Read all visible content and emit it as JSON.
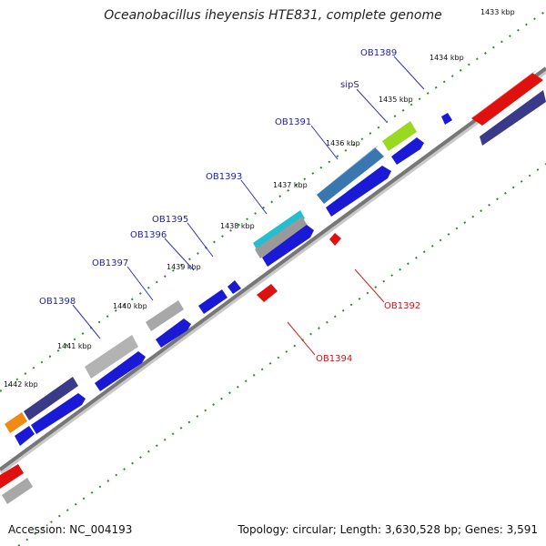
{
  "title": "Oceanobacillus iheyensis HTE831, complete genome",
  "footer": {
    "accession": "Accession: NC_004193",
    "summary": "Topology: circular; Length: 3,630,528 bp; Genes: 3,591"
  },
  "ticks": [
    "1433 kbp",
    "1434 kbp",
    "1435 kbp",
    "1436 kbp",
    "1437 kbp",
    "1438 kbp",
    "1439 kbp",
    "1440 kbp",
    "1441 kbp",
    "1442 kbp"
  ],
  "gene_labels_forward": [
    "OB1389",
    "sipS",
    "OB1391",
    "OB1393",
    "OB1395",
    "OB1396",
    "OB1397",
    "OB1398"
  ],
  "gene_labels_reverse": [
    "OB1392",
    "OB1394"
  ],
  "colors": {
    "forward_gene": "#1a1ad6",
    "reverse_gene": "#e0100f",
    "backbone": "#7a7a7a",
    "tick": "#2e8b2e",
    "label_blue": "#1f1fa8",
    "label_red": "#c4161c"
  }
}
